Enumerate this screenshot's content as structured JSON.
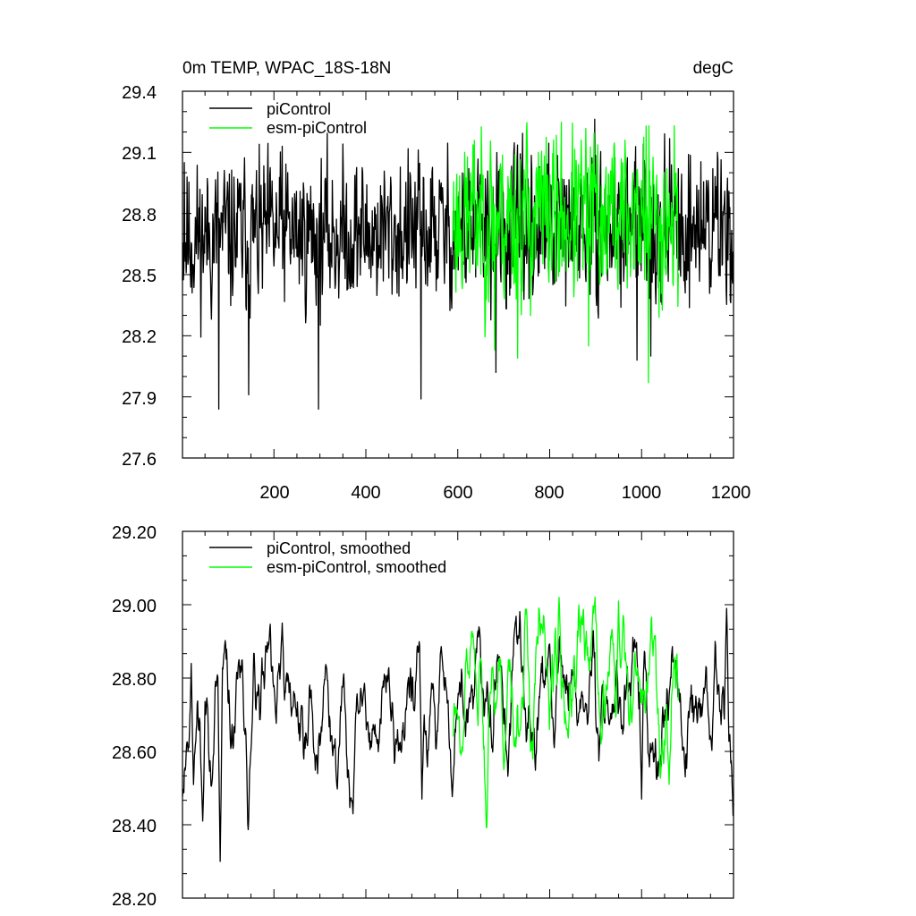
{
  "figure": {
    "title": "0m TEMP, WPAC_18S-18N",
    "units": "degC"
  },
  "chart_data": [
    {
      "type": "line",
      "name": "raw",
      "title": "0m TEMP, WPAC_18S-18N",
      "units": "degC",
      "xlabel": "",
      "ylabel": "",
      "xlim": [
        1,
        1200
      ],
      "ylim": [
        27.6,
        29.4
      ],
      "xticks": [
        200,
        400,
        600,
        800,
        1000,
        1200
      ],
      "xtick_labels": [
        "200",
        "400",
        "600",
        "800",
        "1000",
        "1200"
      ],
      "yticks": [
        27.6,
        27.9,
        28.2,
        28.5,
        28.8,
        29.1,
        29.4
      ],
      "ytick_labels": [
        "27.6",
        "27.9",
        "28.2",
        "28.5",
        "28.8",
        "29.1",
        "29.4"
      ],
      "legend_position": "top-left",
      "series": [
        {
          "name": "piControl",
          "color": "#000000",
          "x_start": 1,
          "x_end": 1200,
          "n": 1200,
          "mean": 28.72,
          "amplitude": 0.18,
          "trend": 0.06,
          "seed": 11,
          "dips": [
            [
              80,
              27.84
            ],
            [
              145,
              27.91
            ],
            [
              297,
              27.84
            ],
            [
              520,
              27.89
            ],
            [
              683,
              28.02
            ],
            [
              990,
              28.08
            ],
            [
              1020,
              28.1
            ],
            [
              1165,
              28.2
            ]
          ],
          "peaks": [
            [
              5,
              29.05
            ],
            [
              218,
              29.13
            ],
            [
              1080,
              29.02
            ],
            [
              1165,
              29.1
            ]
          ]
        },
        {
          "name": "esm-piControl",
          "color": "#00ff00",
          "x_start": 590,
          "x_end": 1080,
          "n": 490,
          "mean": 28.78,
          "amplitude": 0.2,
          "trend": 0.0,
          "seed": 23,
          "dips": [
            [
              680,
              28.13
            ],
            [
              730,
              28.09
            ],
            [
              885,
              28.15
            ],
            [
              1015,
              27.97
            ]
          ],
          "peaks": [
            [
              615,
              29.1
            ],
            [
              940,
              29.13
            ],
            [
              1010,
              29.23
            ]
          ]
        }
      ]
    },
    {
      "type": "line",
      "name": "smoothed",
      "title": "",
      "xlabel": "",
      "ylabel": "",
      "xlim": [
        1,
        1200
      ],
      "ylim": [
        28.2,
        29.2
      ],
      "xticks": [
        200,
        400,
        600,
        800,
        1000,
        1200
      ],
      "xtick_labels": [],
      "yticks": [
        28.2,
        28.4,
        28.6,
        28.8,
        29.0,
        29.2
      ],
      "ytick_labels": [
        "28.20",
        "28.40",
        "28.60",
        "28.80",
        "29.00",
        "29.20"
      ],
      "legend_position": "top-left",
      "series": [
        {
          "name": "piControl, smoothed",
          "color": "#000000",
          "x_start": 1,
          "x_end": 1200,
          "n": 1200,
          "mean": 28.72,
          "amplitude": 0.1,
          "trend": 0.08,
          "seed": 11,
          "smooth": 6,
          "dips": [
            [
              45,
              28.41
            ],
            [
              83,
              28.3
            ],
            [
              372,
              28.43
            ],
            [
              522,
              28.47
            ],
            [
              1000,
              28.47
            ]
          ],
          "peaks": [
            [
              20,
              28.84
            ],
            [
              218,
              28.95
            ],
            [
              1185,
              28.99
            ]
          ]
        },
        {
          "name": "esm-piControl, smoothed",
          "color": "#00ff00",
          "x_start": 590,
          "x_end": 1080,
          "n": 490,
          "mean": 28.78,
          "amplitude": 0.11,
          "trend": 0.0,
          "seed": 23,
          "smooth": 6,
          "dips": [
            [
              610,
              28.6
            ],
            [
              700,
              28.55
            ],
            [
              1060,
              28.51
            ]
          ],
          "peaks": [
            [
              820,
              29.02
            ],
            [
              950,
              29.01
            ]
          ]
        }
      ]
    }
  ]
}
